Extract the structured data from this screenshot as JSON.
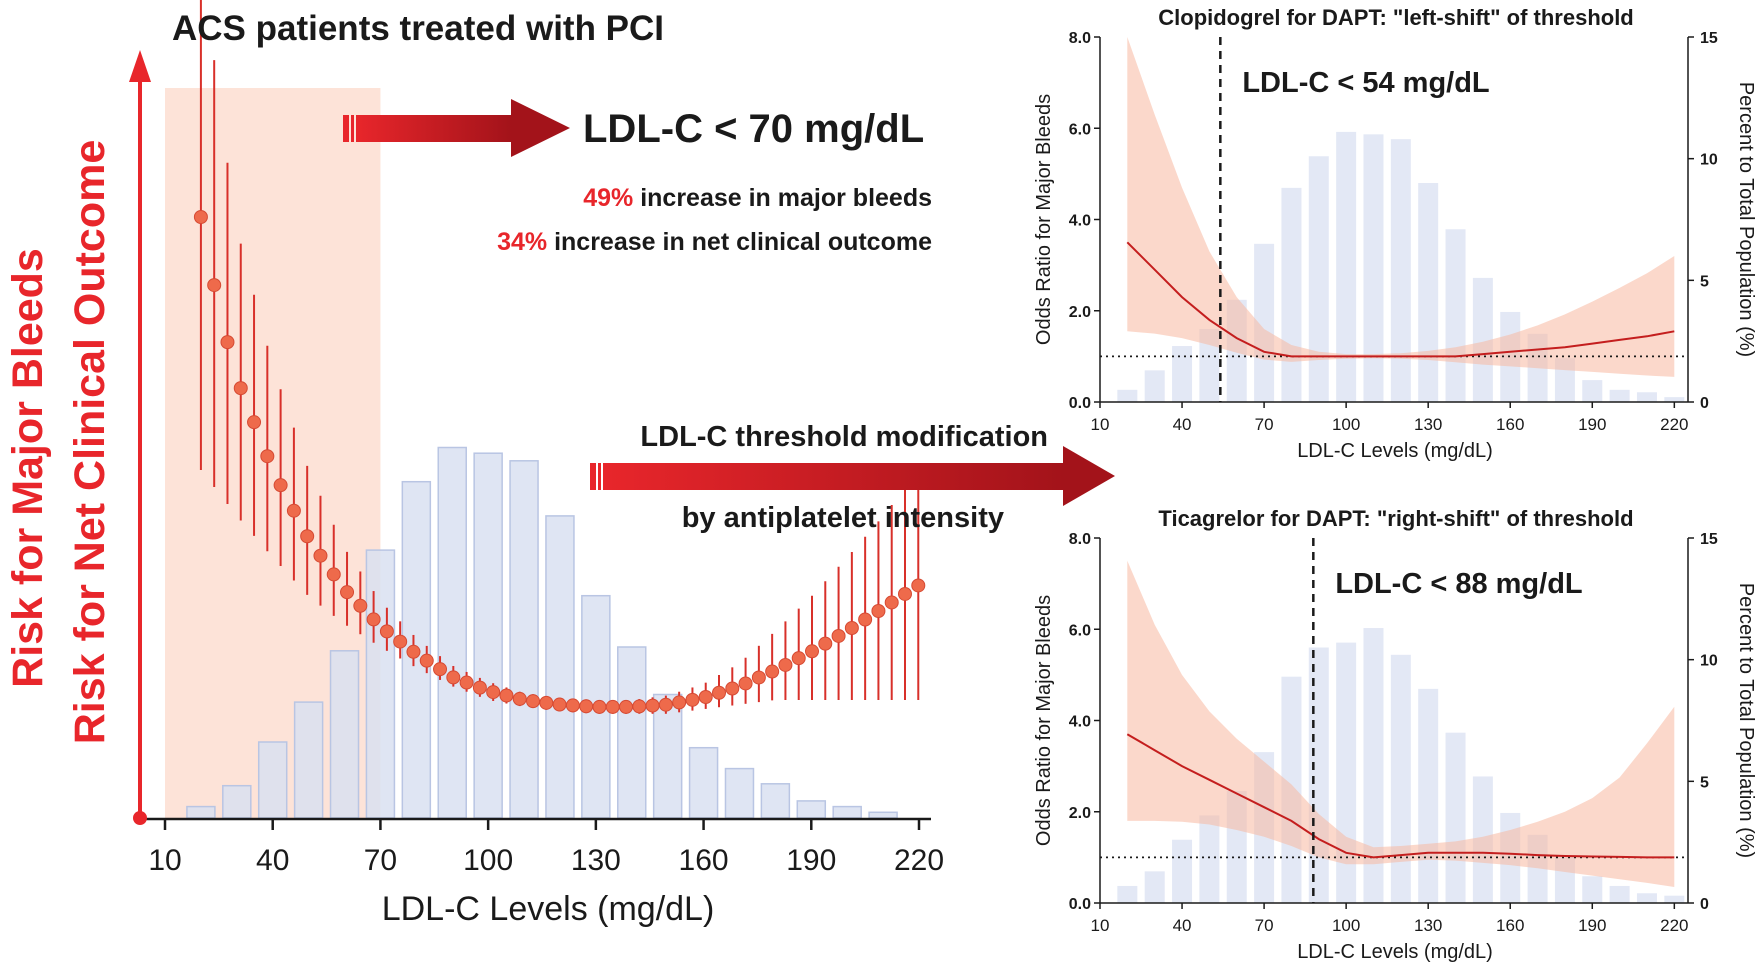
{
  "colors": {
    "red": "#e8262b",
    "dark_red": "#b3151c",
    "bar_fill": "#d9e0f1",
    "bar_stroke": "#b9c5e3",
    "band": "#f7b8a0",
    "shade": "#fde3d8",
    "text": "#1a1a1a",
    "point": "#ee6a4b"
  },
  "header": {
    "main_title": "ACS patients treated with PCI",
    "y_label_line1": "Risk for Major Bleeds",
    "y_label_line2": "Risk for Net Clinical Outcome",
    "threshold_label": "LDL-C < 70 mg/dL",
    "stat1_pct": "49%",
    "stat1_text": " increase in major bleeds",
    "stat2_pct": "34%",
    "stat2_text": " increase in net clinical outcome",
    "mod_line1": "LDL-C threshold modification",
    "mod_line2": "by antiplatelet intensity"
  },
  "chart_data": [
    {
      "type": "bar+line",
      "xlabel": "LDL-C Levels (mg/dL)",
      "ylabel": "",
      "x_ticks": [
        10,
        40,
        70,
        100,
        130,
        160,
        190,
        220
      ],
      "shaded_region": [
        10,
        70
      ],
      "annotation": "LDL-C < 70 mg/dL",
      "histogram": {
        "bin_centers": [
          20,
          30,
          40,
          50,
          60,
          70,
          80,
          90,
          100,
          110,
          120,
          130,
          140,
          150,
          160,
          170,
          180,
          190,
          200,
          210
        ],
        "relative_heights": [
          0.06,
          0.17,
          0.4,
          0.61,
          0.88,
          1.41,
          1.77,
          1.95,
          1.92,
          1.88,
          1.59,
          1.17,
          0.9,
          0.65,
          0.37,
          0.26,
          0.18,
          0.09,
          0.06,
          0.03
        ]
      },
      "curve": {
        "x": [
          15,
          20,
          25,
          30,
          40,
          50,
          60,
          70,
          80,
          90,
          100,
          110,
          120,
          130,
          140,
          150,
          160,
          170,
          180,
          190,
          200,
          210,
          220
        ],
        "y": [
          3.6,
          3.1,
          2.7,
          2.4,
          2.0,
          1.7,
          1.48,
          1.32,
          1.2,
          1.1,
          1.04,
          1.0,
          0.98,
          0.97,
          0.97,
          0.98,
          1.01,
          1.06,
          1.13,
          1.21,
          1.3,
          1.4,
          1.5
        ],
        "ci_low": [
          2.05,
          2.0,
          1.9,
          1.8,
          1.62,
          1.45,
          1.33,
          1.23,
          1.14,
          1.06,
          1.0,
          0.97,
          0.95,
          0.94,
          0.94,
          0.94,
          0.96,
          0.98,
          1.0,
          1.0,
          1.0,
          1.0,
          1.0
        ],
        "ci_high": [
          5.15,
          4.3,
          3.6,
          3.05,
          2.45,
          2.0,
          1.66,
          1.43,
          1.27,
          1.15,
          1.08,
          1.03,
          1.01,
          1.0,
          1.0,
          1.02,
          1.07,
          1.16,
          1.3,
          1.45,
          1.62,
          1.8,
          2.0
        ]
      }
    },
    {
      "type": "bar+line",
      "title": "Clopidogrel for DAPT: \"left-shift\" of threshold",
      "annotation": "LDL-C < 54 mg/dL",
      "threshold": 54,
      "reference_line": 1.0,
      "xlabel": "LDL-C Levels (mg/dL)",
      "ylabel": "Odds Ratio for Major Bleeds",
      "y2label": "Percent to Total Population (%)",
      "x_ticks": [
        10,
        40,
        70,
        100,
        130,
        160,
        190,
        220
      ],
      "x_range": [
        10,
        225
      ],
      "y_ticks": [
        "0.0",
        "2.0",
        "4.0",
        "6.0",
        "8.0"
      ],
      "ylim": [
        0,
        8
      ],
      "y2_ticks": [
        "0",
        "5",
        "10",
        "15"
      ],
      "y2lim": [
        0,
        15
      ],
      "bars": {
        "x": [
          20,
          30,
          40,
          50,
          60,
          70,
          80,
          90,
          100,
          110,
          120,
          130,
          140,
          150,
          160,
          170,
          180,
          190,
          200,
          210,
          220
        ],
        "percent": [
          0.5,
          1.3,
          2.3,
          3.0,
          4.2,
          6.5,
          8.8,
          10.1,
          11.1,
          11.0,
          10.8,
          9.0,
          7.1,
          5.1,
          3.7,
          2.8,
          1.8,
          0.9,
          0.5,
          0.4,
          0.2
        ]
      },
      "curve": {
        "x": [
          20,
          30,
          40,
          50,
          60,
          70,
          80,
          90,
          100,
          110,
          120,
          130,
          140,
          150,
          160,
          170,
          180,
          190,
          200,
          210,
          220
        ],
        "y": [
          3.5,
          2.9,
          2.3,
          1.8,
          1.4,
          1.1,
          1.0,
          1.0,
          1.0,
          1.0,
          1.0,
          1.0,
          1.0,
          1.05,
          1.1,
          1.15,
          1.2,
          1.28,
          1.36,
          1.44,
          1.55
        ],
        "ci_low": [
          1.55,
          1.5,
          1.4,
          1.25,
          1.08,
          0.93,
          0.88,
          0.92,
          0.95,
          0.96,
          0.95,
          0.92,
          0.87,
          0.82,
          0.78,
          0.74,
          0.7,
          0.66,
          0.62,
          0.58,
          0.55
        ],
        "ci_high": [
          8.0,
          6.3,
          4.7,
          3.3,
          2.3,
          1.6,
          1.25,
          1.1,
          1.05,
          1.05,
          1.07,
          1.12,
          1.2,
          1.32,
          1.48,
          1.68,
          1.92,
          2.2,
          2.5,
          2.82,
          3.2
        ]
      }
    },
    {
      "type": "bar+line",
      "title": "Ticagrelor for DAPT:  \"right-shift\" of threshold",
      "annotation": "LDL-C < 88 mg/dL",
      "threshold": 88,
      "reference_line": 1.0,
      "xlabel": "LDL-C Levels (mg/dL)",
      "ylabel": "Odds Ratio for Major Bleeds",
      "y2label": "Percent to Total Population (%)",
      "x_ticks": [
        10,
        40,
        70,
        100,
        130,
        160,
        190,
        220
      ],
      "x_range": [
        10,
        225
      ],
      "y_ticks": [
        "0.0",
        "2.0",
        "4.0",
        "6.0",
        "8.0"
      ],
      "ylim": [
        0,
        8
      ],
      "y2_ticks": [
        "0",
        "5",
        "10",
        "15"
      ],
      "y2lim": [
        0,
        15
      ],
      "bars": {
        "x": [
          20,
          30,
          40,
          50,
          60,
          70,
          80,
          90,
          100,
          110,
          120,
          130,
          140,
          150,
          160,
          170,
          180,
          190,
          200,
          210,
          220
        ],
        "percent": [
          0.7,
          1.3,
          2.6,
          3.6,
          4.6,
          6.2,
          9.3,
          10.5,
          10.7,
          11.3,
          10.2,
          8.8,
          7.0,
          5.2,
          3.7,
          2.8,
          1.9,
          1.1,
          0.7,
          0.4,
          0.3
        ]
      },
      "curve": {
        "x": [
          20,
          30,
          40,
          50,
          60,
          70,
          80,
          90,
          100,
          110,
          120,
          130,
          140,
          150,
          160,
          170,
          180,
          190,
          200,
          210,
          220
        ],
        "y": [
          3.7,
          3.35,
          3.0,
          2.7,
          2.4,
          2.1,
          1.8,
          1.4,
          1.1,
          1.0,
          1.05,
          1.1,
          1.1,
          1.1,
          1.08,
          1.05,
          1.03,
          1.02,
          1.01,
          1.0,
          1.0
        ],
        "ci_low": [
          1.8,
          1.8,
          1.78,
          1.72,
          1.6,
          1.45,
          1.25,
          1.0,
          0.85,
          0.85,
          0.9,
          0.95,
          0.93,
          0.88,
          0.83,
          0.76,
          0.68,
          0.6,
          0.52,
          0.44,
          0.35
        ],
        "ci_high": [
          7.5,
          6.1,
          5.0,
          4.2,
          3.6,
          3.1,
          2.6,
          1.95,
          1.45,
          1.22,
          1.25,
          1.3,
          1.35,
          1.45,
          1.6,
          1.78,
          2.0,
          2.3,
          2.75,
          3.5,
          4.3
        ]
      }
    }
  ]
}
